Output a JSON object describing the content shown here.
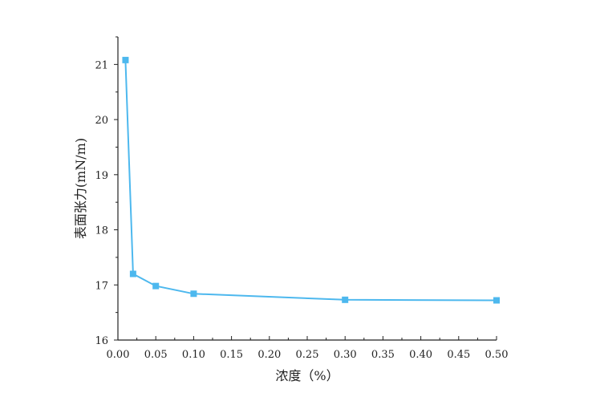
{
  "chart_data": {
    "type": "line",
    "title": "",
    "xlabel": "浓度（%）",
    "ylabel": "表面张力(mN/m)",
    "xlim": [
      0.0,
      0.5
    ],
    "ylim": [
      16,
      21.5
    ],
    "x_ticks": [
      "0.00",
      "0.05",
      "0.10",
      "0.15",
      "0.20",
      "0.25",
      "0.30",
      "0.35",
      "0.40",
      "0.45",
      "0.50"
    ],
    "y_ticks": [
      "16",
      "17",
      "18",
      "19",
      "20",
      "21"
    ],
    "grid": false,
    "legend": "none",
    "series": [
      {
        "color": "#4db8ee",
        "marker": "square",
        "x": [
          0.01,
          0.02,
          0.05,
          0.1,
          0.3,
          0.5
        ],
        "y": [
          21.08,
          17.2,
          16.98,
          16.84,
          16.73,
          16.72
        ]
      }
    ]
  }
}
